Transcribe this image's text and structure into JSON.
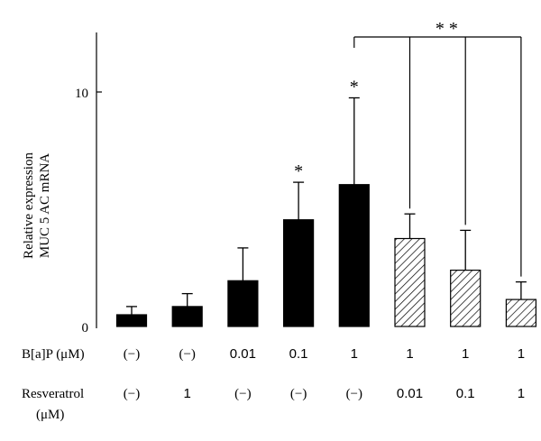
{
  "chart_data": {
    "type": "bar",
    "ylabel_line1": "Relative expression",
    "ylabel_line2": "MUC 5 AC mRNA",
    "ylim": [
      0,
      12.7
    ],
    "y_ticks": [
      "0",
      "10"
    ],
    "y_tick_values": [
      0,
      10
    ],
    "categories": [
      "1",
      "2",
      "3",
      "4",
      "5",
      "6",
      "7",
      "8"
    ],
    "values": [
      0.5,
      0.85,
      1.95,
      4.55,
      6.05,
      3.75,
      2.4,
      1.15
    ],
    "error": [
      0.35,
      0.55,
      1.4,
      1.6,
      3.7,
      1.05,
      1.7,
      0.75
    ],
    "fill": [
      "solid",
      "solid",
      "solid",
      "solid",
      "solid",
      "hatched",
      "hatched",
      "hatched"
    ],
    "significance": [
      "",
      "",
      "",
      "*",
      "*",
      "",
      "",
      ""
    ],
    "bracket_label": "* *",
    "bracket_from": 4,
    "bracket_to": [
      5,
      6,
      7
    ],
    "row_bap": {
      "label": "B[a]P (μM)",
      "values": [
        "(−)",
        "(−)",
        "0.01",
        "0.1",
        "1",
        "1",
        "1",
        "1"
      ]
    },
    "row_resveratrol": {
      "label": "Resveratrol",
      "unit": "(μM)",
      "values": [
        "(−)",
        "1",
        "(−)",
        "(−)",
        "(−)",
        "0.01",
        "0.1",
        "1"
      ]
    },
    "colors": {
      "bar": "#000000",
      "hatch": "#000000",
      "axis": "#000000"
    },
    "grid": false
  }
}
